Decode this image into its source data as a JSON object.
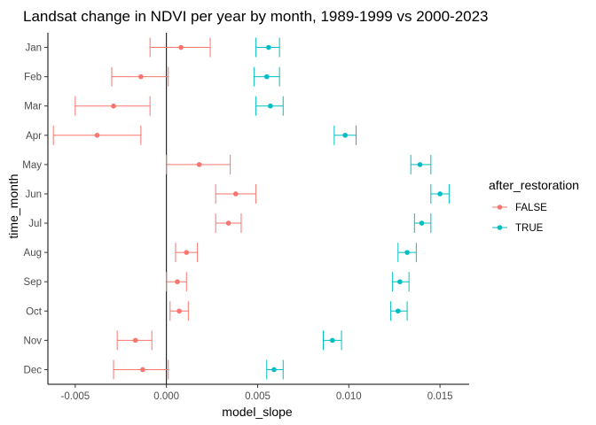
{
  "chart_data": {
    "type": "scatter",
    "title": "Landsat change in NDVI per year by month, 1989-1999 vs 2000-2023",
    "xlabel": "model_slope",
    "ylabel": "time_month",
    "xlim": [
      -0.0065,
      0.0166
    ],
    "x_ticks": [
      "-0.005",
      "0.000",
      "0.005",
      "0.010",
      "0.015"
    ],
    "x_tick_values": [
      -0.005,
      0.0,
      0.005,
      0.01,
      0.015
    ],
    "categories": [
      "Jan",
      "Feb",
      "Mar",
      "Apr",
      "May",
      "Jun",
      "Jul",
      "Aug",
      "Sep",
      "Oct",
      "Nov",
      "Dec"
    ],
    "vline_x": 0,
    "grid": false,
    "legend": {
      "title": "after_restoration",
      "position": "right"
    },
    "series": [
      {
        "name": "FALSE",
        "color": "#F8766D",
        "estimate": [
          0.0008,
          -0.0014,
          -0.0029,
          -0.0038,
          0.0018,
          0.0038,
          0.0034,
          0.0011,
          0.0006,
          0.0007,
          -0.0017,
          -0.0013
        ],
        "lower": [
          -0.0009,
          -0.003,
          -0.005,
          -0.0062,
          0.0,
          0.0027,
          0.0027,
          0.0005,
          0.0,
          0.0002,
          -0.0027,
          -0.0029
        ],
        "upper": [
          0.0024,
          0.0001,
          -0.0009,
          -0.0014,
          0.0035,
          0.0049,
          0.0041,
          0.0017,
          0.0011,
          0.0012,
          -0.0008,
          0.0001
        ]
      },
      {
        "name": "TRUE",
        "color": "#00BFC4",
        "estimate": [
          0.0056,
          0.0055,
          0.0057,
          0.0098,
          0.0139,
          0.015,
          0.014,
          0.0132,
          0.0128,
          0.0127,
          0.0091,
          0.0059
        ],
        "lower": [
          0.0049,
          0.0048,
          0.0049,
          0.0092,
          0.0134,
          0.0145,
          0.0136,
          0.0127,
          0.0124,
          0.0123,
          0.0086,
          0.0055
        ],
        "upper": [
          0.0062,
          0.0062,
          0.0064,
          0.0104,
          0.0145,
          0.0155,
          0.0145,
          0.0137,
          0.0133,
          0.0132,
          0.0096,
          0.0064
        ]
      }
    ]
  }
}
